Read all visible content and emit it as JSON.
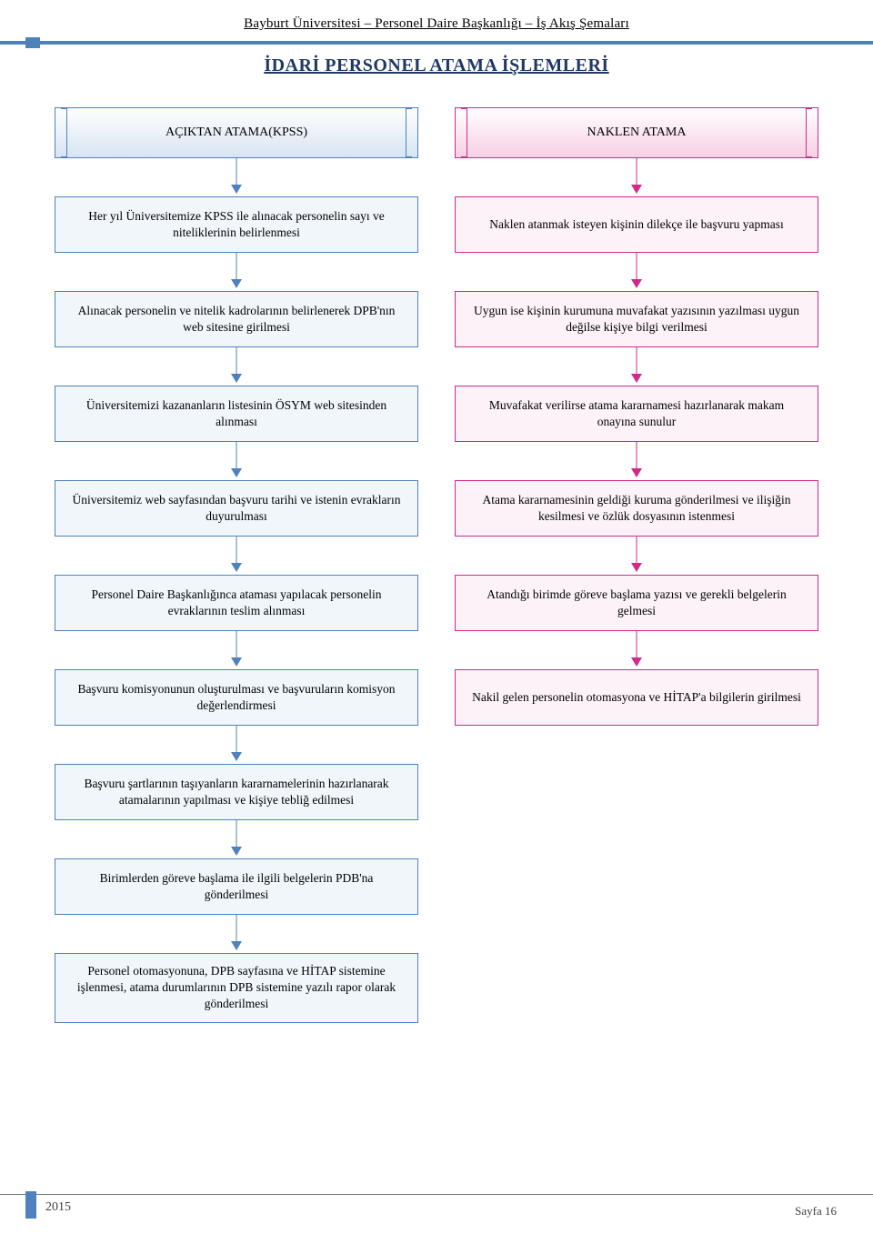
{
  "header_text": "Bayburt Üniversitesi – Personel Daire Başkanlığı – İş Akış Şemaları",
  "title": "İDARİ PERSONEL ATAMA İŞLEMLERİ",
  "footer": {
    "year": "2015",
    "page": "Sayfa 16"
  },
  "palette": {
    "blue_border": "#4f81bd",
    "blue_hdr_fill": "#d7e4f2",
    "blue_step_fill": "#f1f6fb",
    "blue_arrow": "#4f81bd",
    "pink_border": "#d12a8a",
    "pink_hdr_fill": "#f7cfe4",
    "pink_step_fill": "#fcf2f8",
    "pink_arrow": "#d12a8a",
    "text_color": "#000000",
    "title_color": "#1f3864"
  },
  "flowchart": {
    "type": "flowchart",
    "columns": [
      {
        "id": "left",
        "color_scheme": "blue",
        "header": "AÇIKTAN ATAMA(KPSS)",
        "steps": [
          "Her yıl Üniversitemize KPSS ile alınacak personelin sayı ve niteliklerinin belirlenmesi",
          "Alınacak personelin ve nitelik kadrolarının belirlenerek DPB'nın web sitesine girilmesi",
          "Üniversitemizi kazananların listesinin ÖSYM web sitesinden alınması",
          "Üniversitemiz web sayfasından başvuru tarihi ve istenin evrakların duyurulması",
          "Personel Daire Başkanlığınca ataması yapılacak personelin evraklarının teslim alınması",
          "Başvuru komisyonunun oluşturulması ve başvuruların komisyon değerlendirmesi",
          "Başvuru şartlarının taşıyanların kararnamelerinin hazırlanarak atamalarının yapılması ve kişiye tebliğ edilmesi",
          "Birimlerden göreve başlama ile ilgili belgelerin PDB'na gönderilmesi",
          "Personel otomasyonuna, DPB sayfasına ve HİTAP sistemine işlenmesi, atama durumlarının DPB sistemine yazılı rapor olarak gönderilmesi"
        ]
      },
      {
        "id": "right",
        "color_scheme": "pink",
        "header": "NAKLEN ATAMA",
        "steps": [
          "Naklen atanmak isteyen kişinin dilekçe ile başvuru yapması",
          "Uygun ise kişinin kurumuna muvafakat yazısının yazılması uygun değilse kişiye bilgi verilmesi",
          "Muvafakat verilirse atama kararnamesi hazırlanarak makam onayına sunulur",
          "Atama kararnamesinin geldiği kuruma gönderilmesi ve ilişiğin kesilmesi ve özlük dosyasının istenmesi",
          "Atandığı birimde göreve başlama yazısı ve gerekli belgelerin gelmesi",
          "Nakil gelen personelin otomasyona ve HİTAP'a bilgilerin girilmesi"
        ]
      }
    ]
  }
}
